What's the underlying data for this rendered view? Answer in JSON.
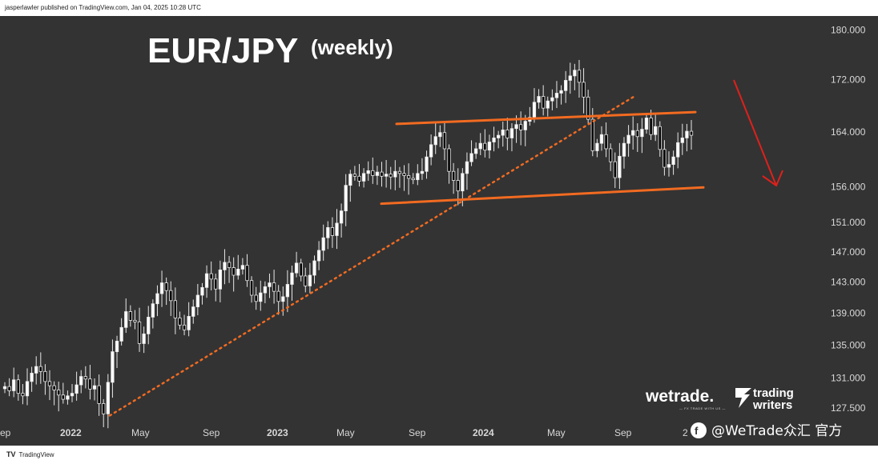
{
  "header": {
    "published_by": "jasperlawler published on TradingView.com, Jan 04, 2025 10:28 UTC"
  },
  "footer": {
    "logo_text": "TV",
    "brand": "TradingView"
  },
  "annotations": {
    "title": "EUR/JPY",
    "subtitle": "(weekly)",
    "brand_wetrade": "wetrade.",
    "brand_wetrade_tagline": "— FX TRADE WITH US —",
    "brand_tw_line1": "trading",
    "brand_tw_line2": "writers",
    "watermark": "@WeTrade众汇 官方"
  },
  "colors": {
    "background": "#333333",
    "up_candle": "#ffffff",
    "down_candle": "#000000",
    "channel_line": "#f26b21",
    "trendline": "#f26b21",
    "arrow": "#e0201b"
  },
  "chart_data": {
    "type": "candlestick",
    "interval": "weekly",
    "symbol": "EUR/JPY",
    "ylim": [
      126.0,
      181.5
    ],
    "y_scale": "log",
    "y_ticks": [
      "180.000",
      "172.000",
      "164.000",
      "156.000",
      "151.000",
      "147.000",
      "143.000",
      "139.000",
      "135.000",
      "131.000",
      "127.500"
    ],
    "x_labels": [
      "ep",
      "2022",
      "May",
      "Sep",
      "2023",
      "May",
      "Sep",
      "2024",
      "May",
      "Sep",
      "2"
    ],
    "close_series": [
      130.0,
      129.5,
      130.8,
      129.2,
      128.9,
      130.6,
      131.6,
      132.4,
      131.8,
      130.6,
      130.1,
      129.6,
      129.0,
      128.5,
      128.9,
      129.2,
      130.2,
      131.2,
      130.9,
      129.7,
      130.1,
      128.0,
      126.8,
      130.5,
      134.2,
      135.5,
      137.2,
      139.2,
      138.1,
      137.9,
      135.2,
      136.4,
      138.5,
      140.2,
      141.5,
      142.9,
      141.9,
      140.6,
      138.4,
      137.5,
      136.9,
      138.6,
      139.8,
      141.3,
      142.3,
      144.1,
      143.4,
      142.1,
      144.6,
      145.6,
      144.9,
      143.9,
      144.7,
      145.2,
      143.2,
      141.3,
      140.5,
      141.6,
      142.4,
      142.9,
      141.8,
      140.5,
      141.1,
      142.7,
      144.2,
      145.5,
      143.8,
      142.5,
      143.9,
      145.8,
      147.2,
      148.9,
      150.3,
      149.2,
      150.9,
      152.6,
      156.2,
      157.8,
      157.5,
      156.8,
      157.9,
      158.3,
      157.6,
      158.1,
      157.5,
      157.8,
      157.4,
      158.2,
      157.9,
      157.6,
      157.2,
      157.0,
      157.9,
      158.2,
      160.3,
      162.1,
      163.3,
      163.9,
      161.5,
      158.2,
      156.9,
      155.4,
      157.9,
      159.6,
      160.8,
      161.5,
      162.3,
      161.3,
      162.5,
      163.1,
      163.5,
      164.3,
      163.1,
      164.5,
      165.1,
      164.3,
      165.6,
      166.2,
      168.5,
      169.4,
      167.6,
      168.7,
      169.2,
      169.9,
      170.3,
      171.9,
      172.6,
      173.5,
      171.6,
      169.3,
      165.9,
      161.2,
      162.3,
      163.6,
      161.5,
      159.6,
      157.3,
      160.4,
      162.3,
      163.5,
      164.2,
      163.3,
      164.4,
      166.1,
      163.6,
      164.8,
      161.4,
      158.8,
      159.2,
      160.3,
      162.4,
      163.1,
      164.1,
      163.5
    ]
  }
}
